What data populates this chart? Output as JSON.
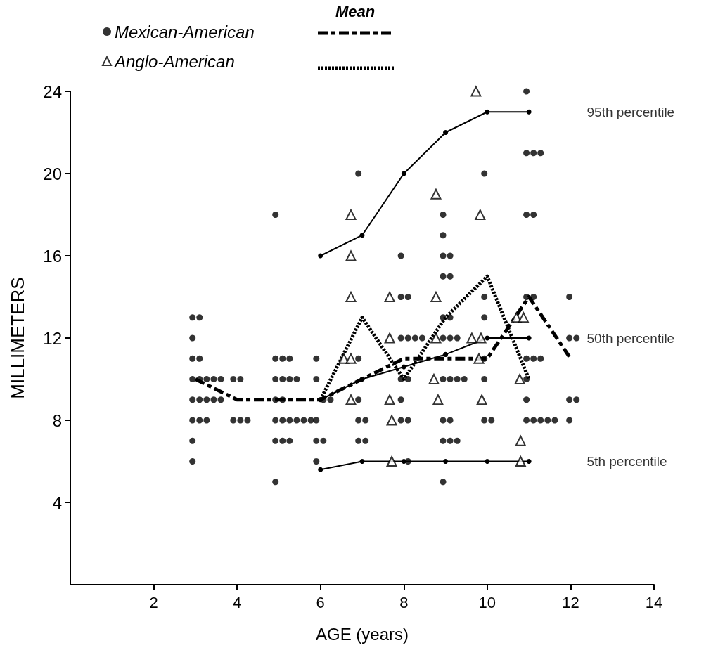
{
  "chart_data": {
    "type": "scatter",
    "xlabel": "AGE (years)",
    "ylabel": "MILLIMETERS",
    "legend_title": "Mean",
    "legend": "top left",
    "grid": false,
    "xlim": [
      0,
      14
    ],
    "xticks": [
      2,
      4,
      6,
      8,
      10,
      12,
      14
    ],
    "ylim": [
      0,
      24
    ],
    "yticks": [
      4,
      8,
      12,
      16,
      20,
      24
    ],
    "annotations": [
      "95th percentile",
      "50th percentile",
      "5th percentile"
    ],
    "series": [
      {
        "name": "Mexican-American",
        "marker": "circle",
        "color": "#000000",
        "x": [
          2.93,
          3.1,
          2.93,
          2.93,
          3.1,
          2.93,
          3.1,
          3.27,
          3.44,
          3.61,
          2.93,
          3.1,
          3.27,
          3.44,
          3.61,
          2.93,
          3.1,
          3.27,
          2.93,
          2.93,
          3.91,
          4.08,
          3.91,
          4.08,
          4.25,
          4.92,
          4.92,
          5.09,
          5.26,
          4.92,
          5.09,
          5.26,
          5.43,
          4.92,
          5.09,
          4.92,
          5.09,
          5.26,
          5.43,
          5.6,
          5.77,
          4.92,
          5.09,
          5.26,
          4.92,
          5.9,
          5.9,
          6.07,
          6.24,
          5.9,
          5.9,
          6.07,
          5.9,
          6.91,
          6.91,
          6.91,
          6.91,
          7.08,
          6.91,
          7.08,
          7.93,
          7.93,
          8.1,
          7.93,
          8.1,
          8.27,
          8.44,
          7.93,
          8.1,
          7.93,
          7.93,
          8.1,
          8.1,
          8.94,
          8.94,
          8.94,
          9.11,
          8.94,
          9.11,
          8.94,
          9.11,
          8.94,
          9.11,
          9.28,
          8.94,
          9.11,
          9.28,
          9.45,
          8.94,
          9.11,
          8.94,
          9.11,
          9.28,
          8.94,
          9.93,
          9.93,
          9.93,
          9.93,
          9.93,
          9.93,
          10.1,
          10.94,
          10.94,
          11.11,
          11.28,
          10.94,
          11.11,
          10.94,
          11.11,
          10.94,
          11.11,
          11.28,
          10.94,
          10.94,
          10.94,
          11.11,
          11.28,
          11.45,
          11.62,
          11.97,
          11.97,
          12.14,
          11.97,
          12.14,
          11.97
        ],
        "values": [
          13,
          13,
          12,
          11,
          11,
          10,
          10,
          10,
          10,
          10,
          9,
          9,
          9,
          9,
          9,
          8,
          8,
          8,
          7,
          6,
          10,
          10,
          8,
          8,
          8,
          18,
          11,
          11,
          11,
          10,
          10,
          10,
          10,
          9,
          9,
          8,
          8,
          8,
          8,
          8,
          8,
          7,
          7,
          7,
          5,
          11,
          10,
          9,
          9,
          8,
          7,
          7,
          6,
          20,
          11,
          9,
          8,
          8,
          7,
          7,
          16,
          14,
          14,
          12,
          12,
          12,
          12,
          10,
          10,
          9,
          8,
          8,
          6,
          18,
          17,
          16,
          16,
          15,
          15,
          13,
          13,
          12,
          12,
          12,
          10,
          10,
          10,
          10,
          8,
          8,
          7,
          7,
          7,
          5,
          20,
          14,
          13,
          11,
          10,
          8,
          8,
          24,
          21,
          21,
          21,
          18,
          18,
          14,
          14,
          11,
          11,
          11,
          10,
          9,
          8,
          8,
          8,
          8,
          8,
          14,
          12,
          12,
          9,
          9,
          8
        ]
      },
      {
        "name": "Anglo-American",
        "marker": "triangle",
        "color": "#000000",
        "x": [
          6.73,
          6.73,
          6.73,
          6.56,
          6.73,
          6.73,
          7.66,
          7.66,
          7.66,
          7.71,
          7.71,
          8.77,
          8.77,
          8.77,
          8.72,
          8.82,
          9.73,
          9.83,
          9.63,
          9.85,
          9.8,
          9.87,
          10.7,
          10.87,
          10.78,
          10.8,
          10.8
        ],
        "values": [
          18,
          16,
          14,
          11,
          11,
          9,
          14,
          12,
          9,
          8,
          6,
          19,
          14,
          12,
          10,
          9,
          24,
          18,
          12,
          12,
          11,
          9,
          13,
          13,
          10,
          7,
          6
        ]
      },
      {
        "type": "line",
        "marker": "circle",
        "line_style": "solid",
        "color": "#000000",
        "x": [
          6,
          7,
          8,
          9,
          10,
          11
        ],
        "values": [
          16,
          17,
          20,
          22,
          23,
          23
        ]
      },
      {
        "type": "line",
        "marker": "circle",
        "line_style": "solid",
        "color": "#000000",
        "x": [
          6,
          7,
          8,
          9,
          10,
          11
        ],
        "values": [
          9,
          10,
          10.6,
          11.2,
          12,
          12
        ]
      },
      {
        "type": "line",
        "marker": "circle",
        "line_style": "solid",
        "color": "#000000",
        "x": [
          6,
          7,
          8,
          9,
          10,
          11
        ],
        "values": [
          5.6,
          6,
          6,
          6,
          6,
          6
        ]
      },
      {
        "type": "line",
        "marker": "none",
        "line_style": "dashed",
        "color": "#000000",
        "x": [
          3,
          4,
          5,
          6,
          7,
          8,
          9,
          10,
          11,
          12
        ],
        "values": [
          10,
          9,
          9,
          9,
          10,
          11,
          11,
          11,
          14,
          11
        ]
      },
      {
        "type": "line",
        "marker": "none",
        "line_style": "dotted",
        "color": "#000000",
        "x": [
          6,
          7,
          8,
          9,
          10,
          11
        ],
        "values": [
          9,
          13,
          10,
          13,
          15,
          10
        ]
      }
    ]
  }
}
